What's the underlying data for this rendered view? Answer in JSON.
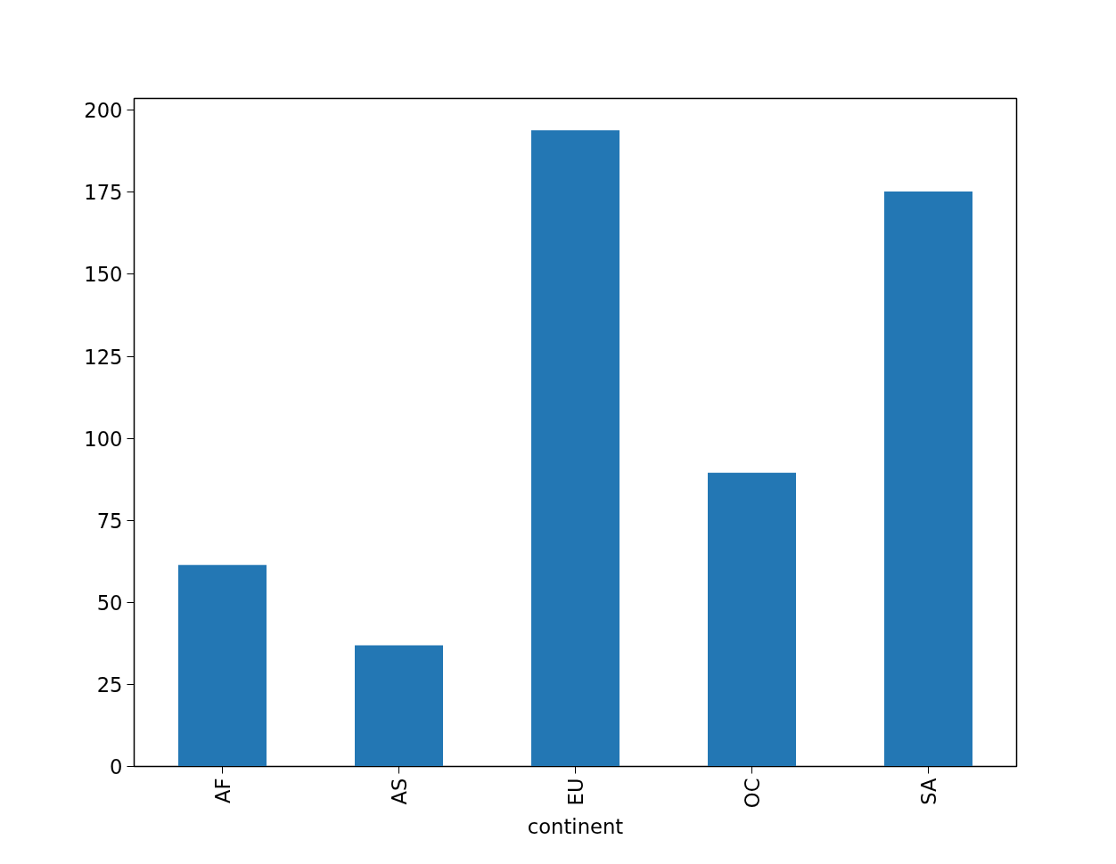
{
  "chart_data": {
    "type": "bar",
    "xlabel": "continent",
    "categories": [
      "AF",
      "AS",
      "EU",
      "OC",
      "SA"
    ],
    "values": [
      61.4,
      36.9,
      193.9,
      89.5,
      175.2
    ],
    "color": "#2377b4",
    "ylim": [
      0,
      203.6
    ],
    "yticks": [
      0,
      25,
      50,
      75,
      100,
      125,
      150,
      175,
      200
    ],
    "grid": false
  }
}
